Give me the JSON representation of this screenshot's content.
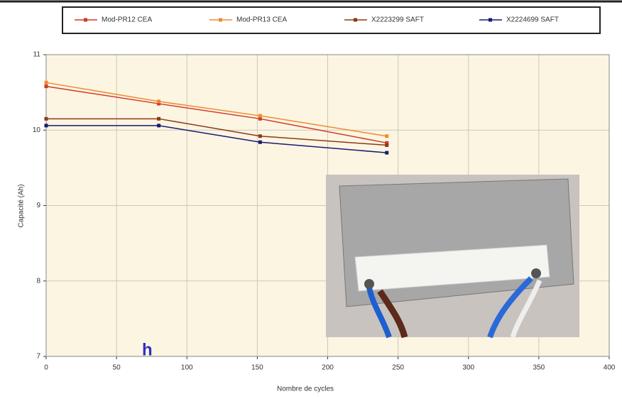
{
  "chart_data": {
    "type": "line",
    "x_label": "Nombre de cycles",
    "y_label": "Capacité (Ah)",
    "x": [
      0,
      80,
      152,
      242
    ],
    "series": [
      {
        "name": "Mod-PR12 CEA",
        "color": "#d03a2a",
        "values": [
          10.58,
          10.35,
          10.15,
          9.83
        ]
      },
      {
        "name": "Mod-PR13 CEA",
        "color": "#f08a30",
        "values": [
          10.63,
          10.38,
          10.19,
          9.92
        ]
      },
      {
        "name": "X2223299 SAFT",
        "color": "#8b3a1a",
        "values": [
          10.15,
          10.15,
          9.92,
          9.8
        ]
      },
      {
        "name": "X2224699 SAFT",
        "color": "#1a1a70",
        "values": [
          10.06,
          10.06,
          9.84,
          9.7
        ]
      }
    ],
    "xlim": [
      0,
      400
    ],
    "xticks": [
      0,
      50,
      100,
      150,
      200,
      250,
      300,
      350,
      400
    ],
    "ylim": [
      7,
      11
    ],
    "yticks": [
      7,
      8,
      9,
      10,
      11
    ],
    "grid": true,
    "legend": "top"
  },
  "fragment_text": "h"
}
